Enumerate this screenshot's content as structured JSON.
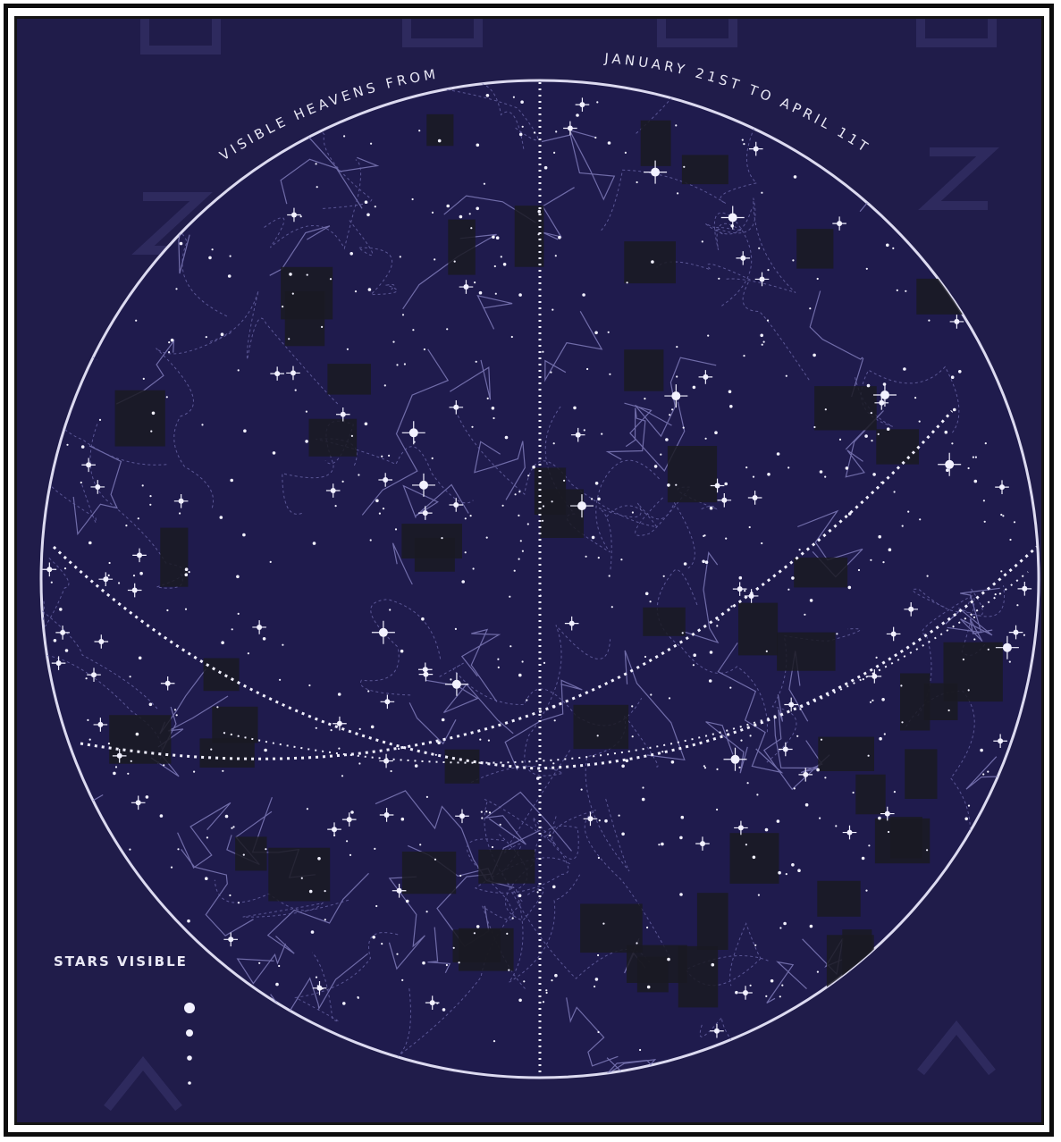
{
  "title": {
    "left": "VISIBLE HEAVENS FROM",
    "right": "JANUARY 21ST TO APRIL 11TH"
  },
  "legend": {
    "heading": "STARS VISIBLE"
  },
  "colors": {
    "background": "#201c4a",
    "ink": "#e9e8f5",
    "constellation_lines": "#8c88c8",
    "frame": "#0d0d0d"
  }
}
